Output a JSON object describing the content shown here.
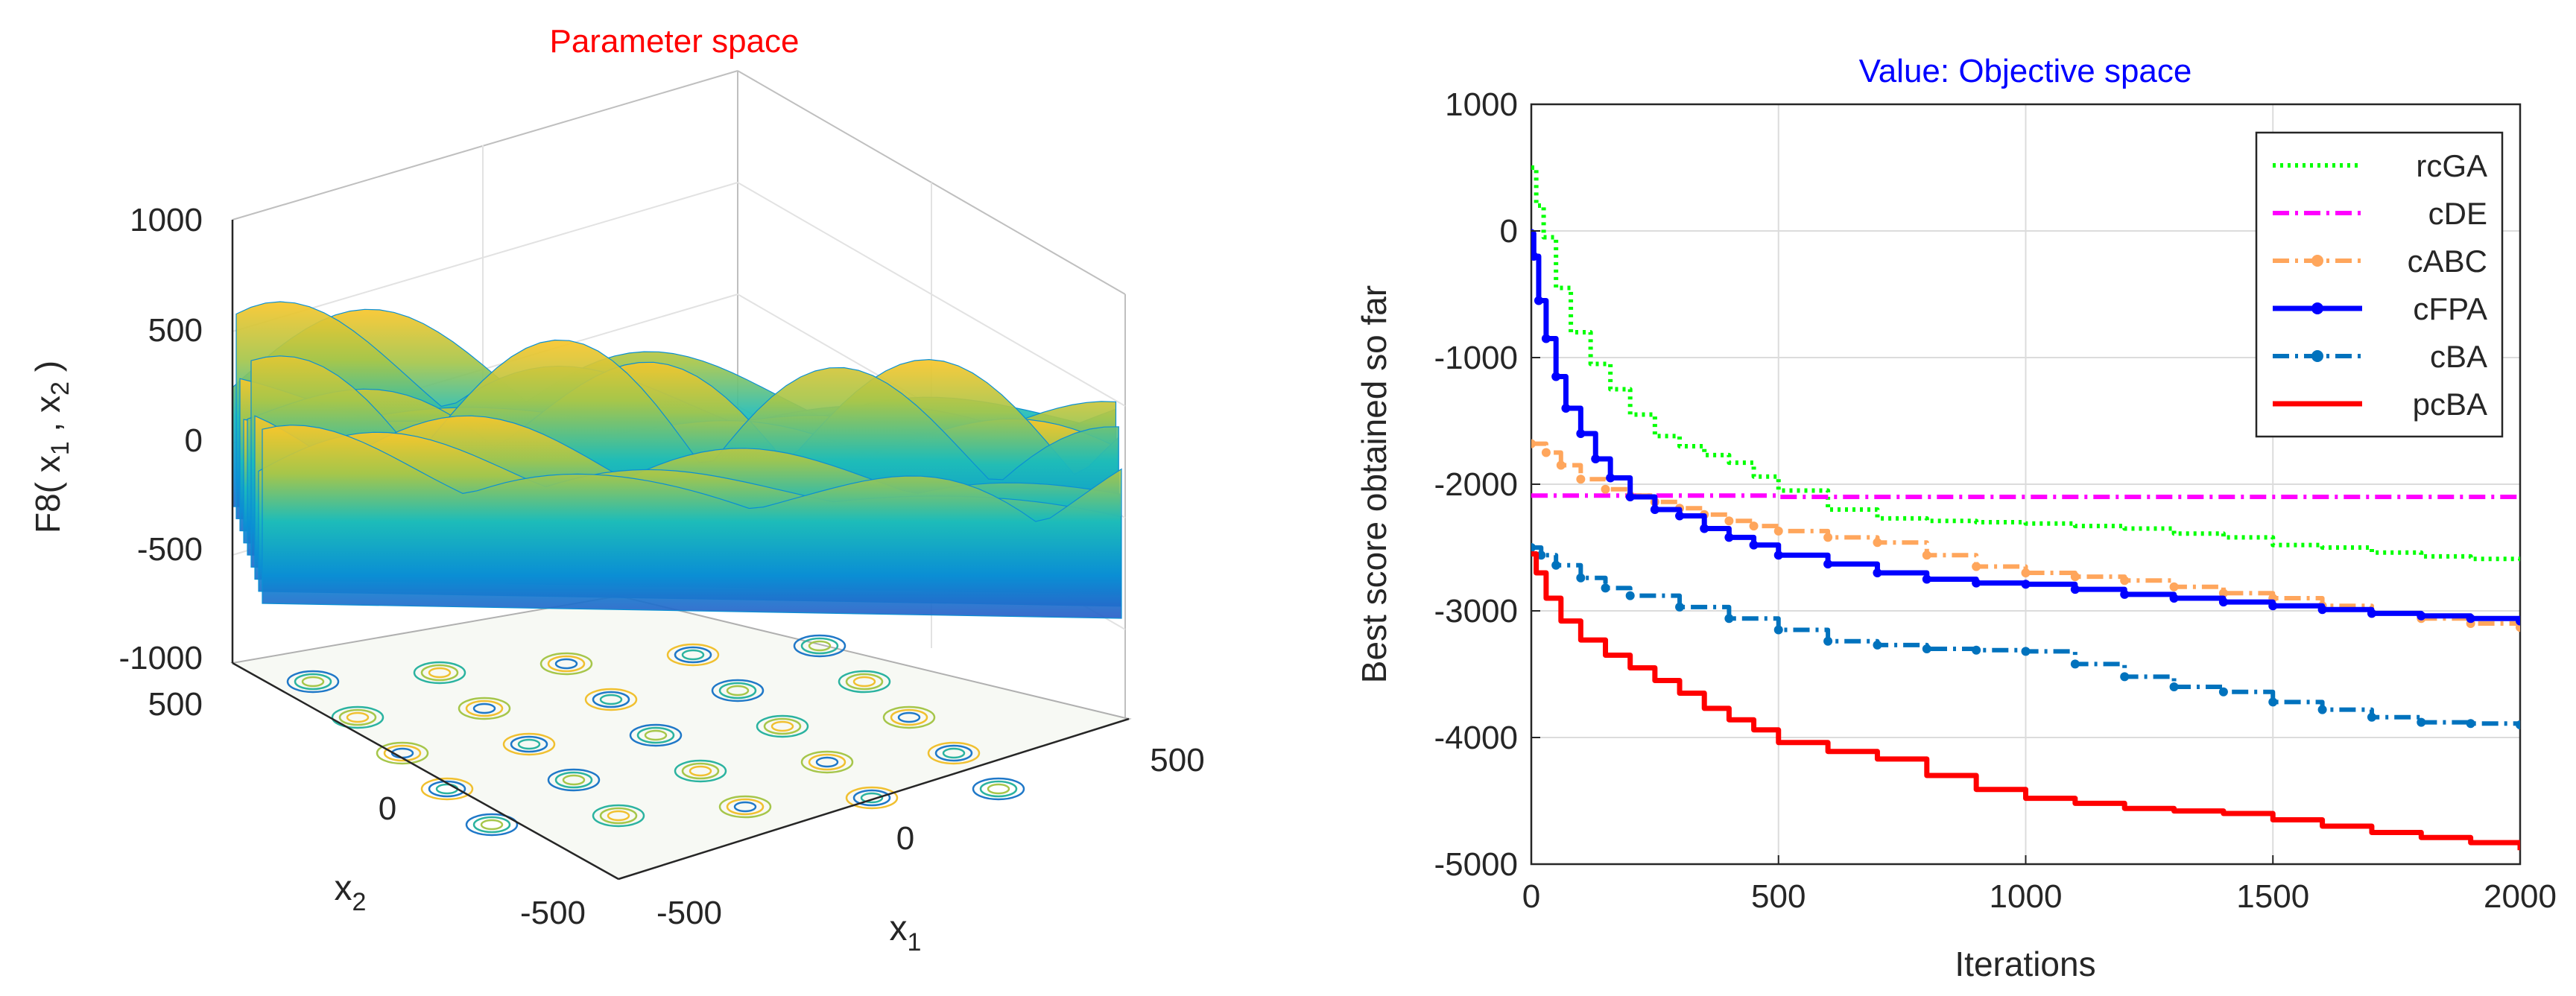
{
  "chart_data": [
    {
      "type": "surface3d",
      "title": "Parameter space",
      "title_color": "#ff0000",
      "zlabel": "F8( x_1 , x_2 )",
      "zlabel_parts": [
        "F8( x",
        "1",
        " , x",
        "2",
        " )"
      ],
      "xlabel": "x_1",
      "ylabel": "x_2",
      "xlabel_parts": [
        "x",
        "1"
      ],
      "ylabel_parts": [
        "x",
        "2"
      ],
      "xlim": [
        -500,
        500
      ],
      "ylim": [
        -500,
        500
      ],
      "zlim": [
        -1000,
        1000
      ],
      "z_ticks": [
        "1000",
        "500",
        "0",
        "-500",
        "-1000"
      ],
      "x_ticks": [
        "-500",
        "0",
        "500"
      ],
      "y_ticks": [
        "500",
        "0",
        "-500"
      ],
      "colormap": [
        "#3e26a8",
        "#0a8fd4",
        "#1dbcb9",
        "#a6c64a",
        "#f9c62a",
        "#f9fb0e"
      ],
      "contour_projection": true
    },
    {
      "type": "line",
      "title": "Value: Objective space",
      "title_color": "#0000ff",
      "xlabel": "Iterations",
      "ylabel": "Best score obtained so far",
      "xlim": [
        0,
        2000
      ],
      "ylim": [
        -5000,
        1000
      ],
      "xticks": [
        0,
        500,
        1000,
        1500,
        2000
      ],
      "yticks": [
        1000,
        0,
        -1000,
        -2000,
        -3000,
        -4000,
        -5000
      ],
      "xtick_labels": [
        "0",
        "500",
        "1000",
        "1500",
        "2000"
      ],
      "ytick_labels": [
        "1000",
        "0",
        "-1000",
        "-2000",
        "-3000",
        "-4000",
        "-5000"
      ],
      "grid": true,
      "legend_position": "top-right",
      "series": [
        {
          "name": "rcGA",
          "color": "#00ff00",
          "style": "dotted",
          "x": [
            0,
            10,
            25,
            50,
            80,
            120,
            160,
            200,
            250,
            300,
            350,
            400,
            450,
            500,
            600,
            700,
            800,
            900,
            1000,
            1100,
            1200,
            1300,
            1400,
            1500,
            1600,
            1700,
            1800,
            1900,
            2000
          ],
          "y": [
            500,
            200,
            -50,
            -450,
            -800,
            -1050,
            -1250,
            -1450,
            -1620,
            -1700,
            -1770,
            -1830,
            -1940,
            -2050,
            -2200,
            -2270,
            -2290,
            -2300,
            -2310,
            -2330,
            -2350,
            -2390,
            -2420,
            -2480,
            -2500,
            -2540,
            -2570,
            -2590,
            -2610
          ]
        },
        {
          "name": "cDE",
          "color": "#ff00ff",
          "style": "dash-dot",
          "x": [
            0,
            500,
            1000,
            1500,
            2000
          ],
          "y": [
            -2090,
            -2100,
            -2100,
            -2100,
            -2110
          ]
        },
        {
          "name": "cABC",
          "color": "#ffa65c",
          "style": "dash-dot-marker",
          "x": [
            0,
            30,
            60,
            100,
            150,
            200,
            250,
            300,
            350,
            400,
            450,
            500,
            600,
            700,
            800,
            900,
            1000,
            1100,
            1200,
            1300,
            1400,
            1500,
            1600,
            1700,
            1800,
            1900,
            2000
          ],
          "y": [
            -1680,
            -1750,
            -1850,
            -1960,
            -2040,
            -2090,
            -2140,
            -2190,
            -2240,
            -2290,
            -2330,
            -2370,
            -2420,
            -2460,
            -2560,
            -2650,
            -2700,
            -2730,
            -2760,
            -2810,
            -2860,
            -2900,
            -2960,
            -3020,
            -3060,
            -3100,
            -3130
          ]
        },
        {
          "name": "cFPA",
          "color": "#0000ff",
          "style": "solid-marker",
          "x": [
            0,
            5,
            15,
            30,
            50,
            70,
            100,
            130,
            160,
            200,
            250,
            300,
            350,
            400,
            450,
            500,
            600,
            700,
            800,
            900,
            1000,
            1100,
            1200,
            1300,
            1400,
            1500,
            1600,
            1700,
            1800,
            1900,
            2000
          ],
          "y": [
            -20,
            -200,
            -550,
            -850,
            -1150,
            -1400,
            -1600,
            -1800,
            -1950,
            -2100,
            -2200,
            -2250,
            -2350,
            -2420,
            -2480,
            -2560,
            -2630,
            -2700,
            -2750,
            -2780,
            -2790,
            -2830,
            -2870,
            -2900,
            -2930,
            -2960,
            -2990,
            -3020,
            -3040,
            -3060,
            -3080
          ]
        },
        {
          "name": "cBA",
          "color": "#0072bd",
          "style": "dash-dot-marker",
          "x": [
            0,
            20,
            50,
            100,
            150,
            200,
            300,
            400,
            500,
            600,
            700,
            800,
            900,
            1000,
            1100,
            1200,
            1300,
            1400,
            1500,
            1600,
            1700,
            1800,
            1900,
            2000
          ],
          "y": [
            -2500,
            -2560,
            -2640,
            -2740,
            -2820,
            -2880,
            -2970,
            -3060,
            -3150,
            -3240,
            -3270,
            -3300,
            -3310,
            -3320,
            -3420,
            -3520,
            -3600,
            -3640,
            -3720,
            -3780,
            -3840,
            -3880,
            -3890,
            -3900
          ]
        },
        {
          "name": "pcBA",
          "color": "#ff0000",
          "style": "solid",
          "x": [
            0,
            10,
            30,
            60,
            100,
            150,
            200,
            250,
            300,
            350,
            400,
            450,
            500,
            600,
            700,
            800,
            900,
            1000,
            1100,
            1200,
            1300,
            1400,
            1500,
            1600,
            1700,
            1800,
            1900,
            2000
          ],
          "y": [
            -2550,
            -2700,
            -2900,
            -3080,
            -3230,
            -3350,
            -3450,
            -3550,
            -3650,
            -3770,
            -3860,
            -3940,
            -4040,
            -4110,
            -4170,
            -4300,
            -4410,
            -4480,
            -4520,
            -4560,
            -4580,
            -4600,
            -4650,
            -4700,
            -4750,
            -4790,
            -4830,
            -4890
          ]
        }
      ]
    }
  ]
}
